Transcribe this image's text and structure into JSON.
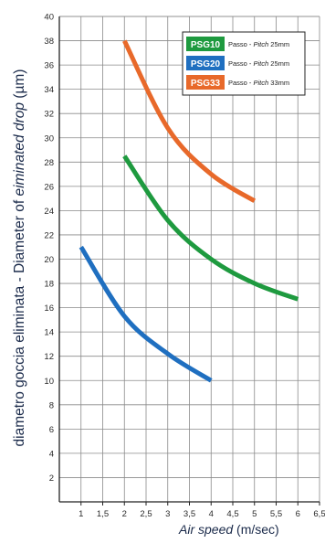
{
  "chart_data": {
    "type": "line",
    "title": "",
    "ylabel": {
      "part1": "diametro goccia eliminata - Diameter of ",
      "part2": "eiminated drop",
      "part3": " (µm)"
    },
    "xlabel": {
      "part1": "Air speed",
      "part2": " (m/sec)"
    },
    "xlim": [
      0.5,
      6.5
    ],
    "ylim": [
      0,
      40
    ],
    "x_ticks": [
      "1",
      "1,5",
      "2",
      "2,5",
      "3",
      "3,5",
      "4",
      "4,5",
      "5",
      "5,5",
      "6",
      "6,5"
    ],
    "y_ticks": [
      "2",
      "4",
      "6",
      "8",
      "10",
      "12",
      "14",
      "16",
      "18",
      "20",
      "22",
      "24",
      "26",
      "28",
      "30",
      "32",
      "34",
      "36",
      "38",
      "40"
    ],
    "grid": true,
    "legend_position": "top-right",
    "series": [
      {
        "name": "PSG10",
        "label_prefix": "Passo - ",
        "label_italic": "Pitch",
        "label_suffix": " 25mm",
        "color": "#1e9a3f",
        "x": [
          2,
          3,
          4,
          5,
          6
        ],
        "y": [
          28.5,
          23.2,
          20.0,
          18.0,
          16.7
        ]
      },
      {
        "name": "PSG20",
        "label_prefix": "Passo - ",
        "label_italic": "Pitch",
        "label_suffix": " 25mm",
        "color": "#1f6fc0",
        "x": [
          1,
          2,
          3,
          4
        ],
        "y": [
          21.0,
          15.3,
          12.2,
          10.0
        ]
      },
      {
        "name": "PSG33",
        "label_prefix": "Passo - ",
        "label_italic": "Pitch",
        "label_suffix": " 33mm",
        "color": "#e8692a",
        "x": [
          2,
          3,
          4,
          5
        ],
        "y": [
          38.0,
          30.8,
          27.0,
          24.8
        ]
      }
    ]
  }
}
